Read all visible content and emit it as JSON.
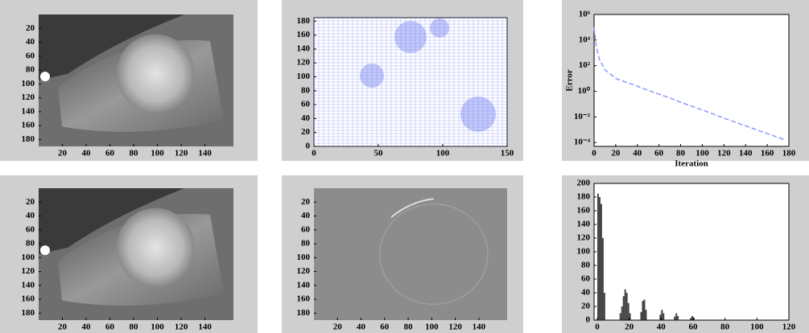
{
  "chart_data": [
    {
      "type": "image",
      "xlim": [
        0,
        164
      ],
      "ylim": [
        0,
        190
      ],
      "y_reversed": true,
      "xticks": [
        20,
        40,
        60,
        80,
        100,
        120,
        140
      ],
      "yticks": [
        20,
        40,
        60,
        80,
        100,
        120,
        140,
        160,
        180
      ]
    },
    {
      "type": "mesh",
      "xlim": [
        0,
        150
      ],
      "ylim": [
        0,
        185
      ],
      "xticks": [
        0,
        50,
        100,
        150
      ],
      "yticks": [
        0,
        20,
        40,
        60,
        80,
        100,
        120,
        140,
        160,
        180
      ],
      "color": "#5566ee"
    },
    {
      "type": "line",
      "log_y": true,
      "x_label": "Iteration",
      "y_label": "Error",
      "color": "#8899ff",
      "xlim": [
        0,
        180
      ],
      "ylim": [
        5e-05,
        1000000
      ],
      "xticks": [
        0,
        20,
        40,
        60,
        80,
        100,
        120,
        140,
        160,
        180
      ],
      "yticks": [
        {
          "value": 1000000,
          "label": "10⁶"
        },
        {
          "value": 10000,
          "label": "10⁴"
        },
        {
          "value": 100,
          "label": "10²"
        },
        {
          "value": 1,
          "label": "10⁰"
        },
        {
          "value": 0.01,
          "label": "10⁻²"
        },
        {
          "value": 0.0001,
          "label": "10⁻⁴"
        }
      ],
      "x": [
        0,
        2,
        5,
        10,
        20,
        30,
        40,
        50,
        60,
        70,
        80,
        90,
        100,
        110,
        120,
        130,
        140,
        150,
        160,
        170,
        175
      ],
      "values": [
        100000,
        3000,
        300,
        50,
        10,
        5,
        2.5,
        1.2,
        0.6,
        0.3,
        0.14,
        0.07,
        0.035,
        0.017,
        0.008,
        0.004,
        0.002,
        0.001,
        0.0005,
        0.00025,
        0.00018
      ]
    },
    {
      "type": "image",
      "xlim": [
        0,
        164
      ],
      "ylim": [
        0,
        190
      ],
      "y_reversed": true,
      "xticks": [
        20,
        40,
        60,
        80,
        100,
        120,
        140
      ],
      "yticks": [
        20,
        40,
        60,
        80,
        100,
        120,
        140,
        160,
        180
      ]
    },
    {
      "type": "diff",
      "xlim": [
        0,
        164
      ],
      "ylim": [
        0,
        190
      ],
      "y_reversed": true,
      "xticks": [
        20,
        40,
        60,
        80,
        100,
        120,
        140
      ],
      "yticks": [
        20,
        40,
        60,
        80,
        100,
        120,
        140,
        160,
        180
      ]
    },
    {
      "type": "histogram",
      "color": "#222222",
      "xlim": [
        -2,
        120
      ],
      "ylim": [
        0,
        200
      ],
      "xticks": [
        0,
        20,
        40,
        60,
        80,
        100,
        120
      ],
      "yticks": [
        0,
        20,
        40,
        60,
        80,
        100,
        120,
        140,
        160,
        180,
        200
      ],
      "x": [
        0,
        1,
        2,
        3,
        4,
        14,
        15,
        16,
        17,
        18,
        19,
        20,
        27,
        28,
        29,
        30,
        39,
        40,
        41,
        48,
        49,
        50,
        58,
        59,
        60
      ],
      "values": [
        185,
        180,
        170,
        120,
        40,
        10,
        20,
        35,
        45,
        40,
        25,
        10,
        12,
        28,
        30,
        15,
        8,
        15,
        10,
        5,
        10,
        6,
        3,
        6,
        4
      ]
    }
  ]
}
